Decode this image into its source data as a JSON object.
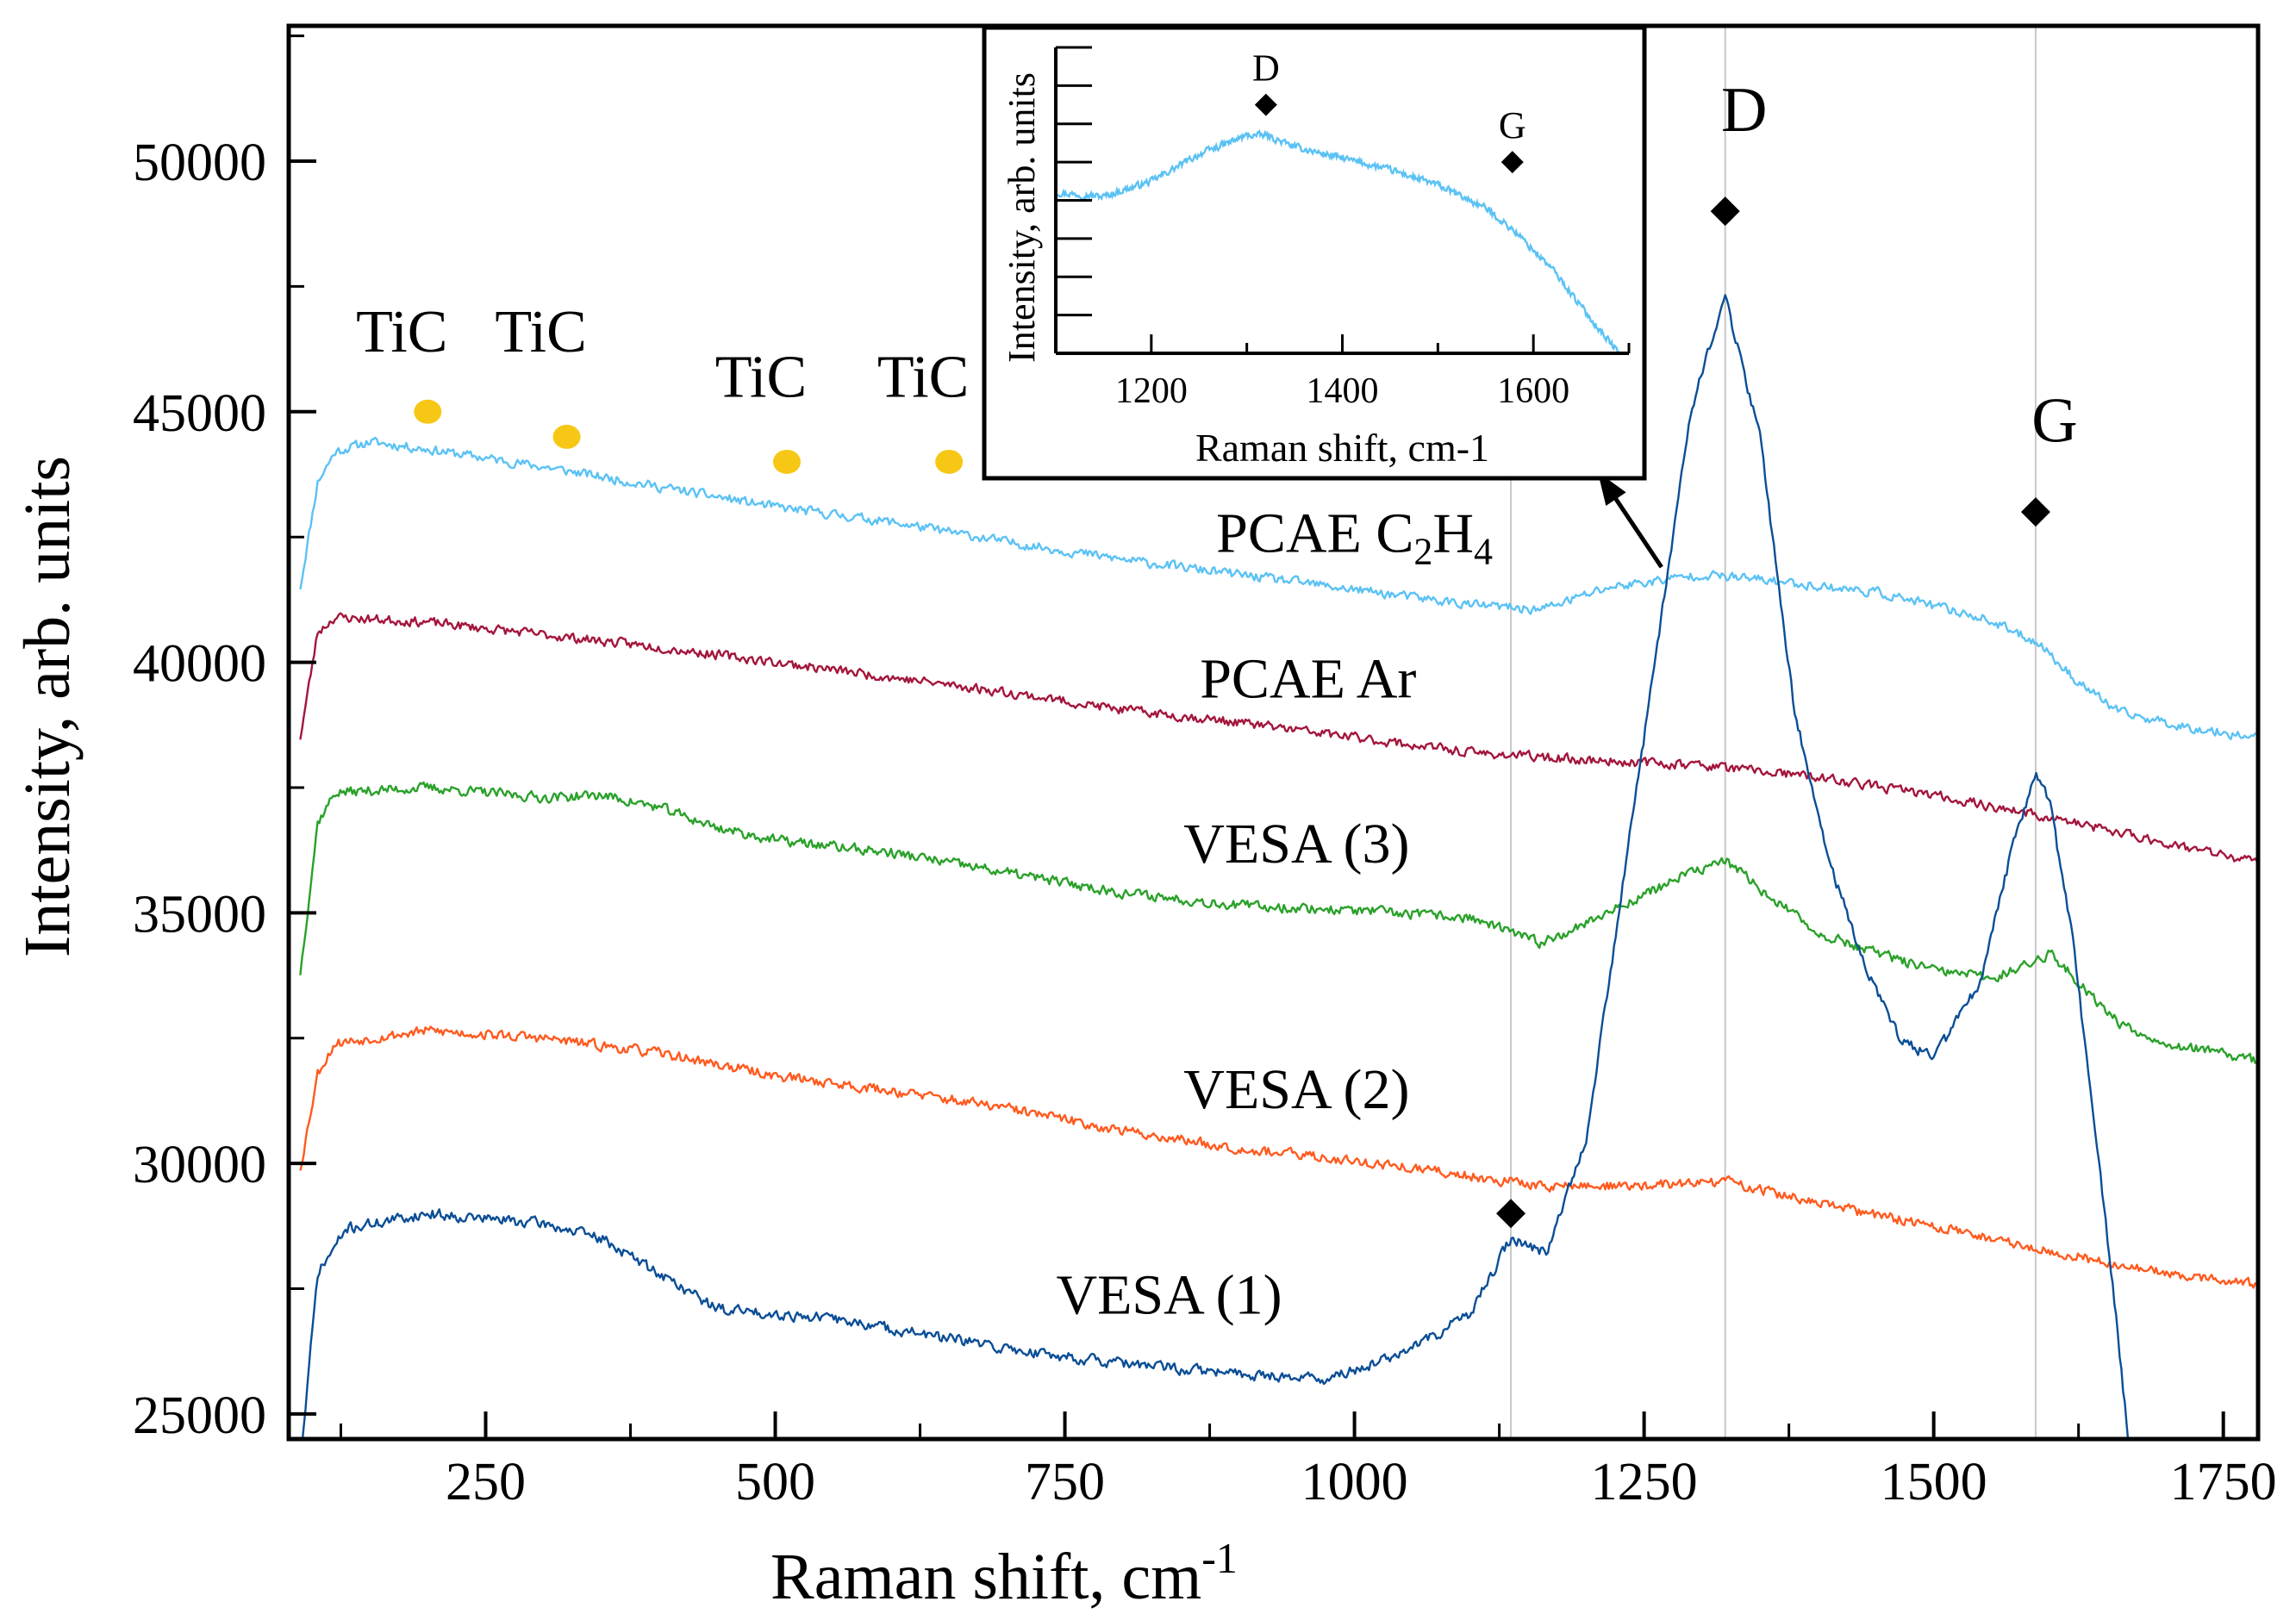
{
  "chart_data": {
    "type": "line",
    "xlabel": "Raman shift, cm",
    "xlabel_sup": "-1",
    "ylabel": "Intensity, arb. units",
    "xlim": [
      80,
      1780
    ],
    "ylim": [
      24500,
      52700
    ],
    "xticks": [
      250,
      500,
      750,
      1000,
      1250,
      1500,
      1750
    ],
    "xtick_labels": [
      "250",
      "500",
      "750",
      "1000",
      "1250",
      "1500",
      "1750"
    ],
    "yticks": [
      25000,
      30000,
      35000,
      40000,
      45000,
      50000
    ],
    "ytick_labels": [
      "25000",
      "30000",
      "35000",
      "40000",
      "45000",
      "50000"
    ],
    "grid": false,
    "vlines_x": [
      1135,
      1320,
      1588
    ],
    "series": [
      {
        "name": "PCAE C2H4",
        "color": "#5bc2f4",
        "seed": 11,
        "noise": 130,
        "points": [
          [
            90,
            41500
          ],
          [
            105,
            43600
          ],
          [
            120,
            44200
          ],
          [
            150,
            44400
          ],
          [
            200,
            44250
          ],
          [
            300,
            43900
          ],
          [
            400,
            43500
          ],
          [
            500,
            43100
          ],
          [
            600,
            42800
          ],
          [
            700,
            42400
          ],
          [
            800,
            42050
          ],
          [
            900,
            41750
          ],
          [
            1000,
            41450
          ],
          [
            1100,
            41150
          ],
          [
            1160,
            41050
          ],
          [
            1220,
            41500
          ],
          [
            1300,
            41750
          ],
          [
            1350,
            41650
          ],
          [
            1450,
            41400
          ],
          [
            1540,
            40900
          ],
          [
            1590,
            40400
          ],
          [
            1620,
            39700
          ],
          [
            1660,
            39000
          ],
          [
            1720,
            38700
          ],
          [
            1780,
            38500
          ]
        ]
      },
      {
        "name": "PCAE Ar",
        "color": "#a3163c",
        "seed": 23,
        "noise": 130,
        "points": [
          [
            90,
            38500
          ],
          [
            105,
            40600
          ],
          [
            120,
            40900
          ],
          [
            200,
            40800
          ],
          [
            300,
            40550
          ],
          [
            400,
            40300
          ],
          [
            500,
            40000
          ],
          [
            600,
            39700
          ],
          [
            700,
            39400
          ],
          [
            800,
            39050
          ],
          [
            900,
            38800
          ],
          [
            1000,
            38500
          ],
          [
            1100,
            38200
          ],
          [
            1200,
            38050
          ],
          [
            1300,
            37950
          ],
          [
            1400,
            37700
          ],
          [
            1500,
            37350
          ],
          [
            1600,
            36900
          ],
          [
            1700,
            36400
          ],
          [
            1780,
            36000
          ]
        ]
      },
      {
        "name": "VESA (3)",
        "color": "#2aa12a",
        "seed": 37,
        "noise": 140,
        "points": [
          [
            90,
            33800
          ],
          [
            105,
            36800
          ],
          [
            120,
            37400
          ],
          [
            200,
            37500
          ],
          [
            300,
            37300
          ],
          [
            350,
            37350
          ],
          [
            400,
            37100
          ],
          [
            450,
            36700
          ],
          [
            500,
            36450
          ],
          [
            600,
            36200
          ],
          [
            700,
            35800
          ],
          [
            800,
            35400
          ],
          [
            900,
            35150
          ],
          [
            1000,
            35050
          ],
          [
            1100,
            34900
          ],
          [
            1160,
            34400
          ],
          [
            1200,
            34800
          ],
          [
            1280,
            35700
          ],
          [
            1320,
            36050
          ],
          [
            1360,
            35300
          ],
          [
            1400,
            34600
          ],
          [
            1450,
            34200
          ],
          [
            1500,
            33850
          ],
          [
            1550,
            33700
          ],
          [
            1580,
            33950
          ],
          [
            1600,
            34200
          ],
          [
            1630,
            33500
          ],
          [
            1660,
            32800
          ],
          [
            1700,
            32400
          ],
          [
            1780,
            32050
          ]
        ]
      },
      {
        "name": "VESA (2)",
        "color": "#ff5a1f",
        "seed": 53,
        "noise": 140,
        "points": [
          [
            90,
            29900
          ],
          [
            105,
            31800
          ],
          [
            120,
            32400
          ],
          [
            200,
            32650
          ],
          [
            300,
            32500
          ],
          [
            400,
            32200
          ],
          [
            500,
            31750
          ],
          [
            600,
            31450
          ],
          [
            700,
            31100
          ],
          [
            800,
            30650
          ],
          [
            900,
            30300
          ],
          [
            1000,
            30050
          ],
          [
            1100,
            29750
          ],
          [
            1160,
            29550
          ],
          [
            1250,
            29550
          ],
          [
            1320,
            29650
          ],
          [
            1400,
            29200
          ],
          [
            1500,
            28750
          ],
          [
            1600,
            28250
          ],
          [
            1700,
            27800
          ],
          [
            1780,
            27600
          ]
        ]
      },
      {
        "name": "VESA (1)",
        "color": "#0b4e96",
        "seed": 71,
        "noise": 150,
        "points": [
          [
            90,
            24000
          ],
          [
            105,
            27800
          ],
          [
            130,
            28700
          ],
          [
            200,
            29000
          ],
          [
            300,
            28800
          ],
          [
            350,
            28500
          ],
          [
            400,
            27800
          ],
          [
            450,
            27100
          ],
          [
            500,
            27000
          ],
          [
            550,
            26900
          ],
          [
            600,
            26700
          ],
          [
            700,
            26300
          ],
          [
            800,
            26000
          ],
          [
            900,
            25800
          ],
          [
            980,
            25700
          ],
          [
            1050,
            26300
          ],
          [
            1100,
            27000
          ],
          [
            1135,
            28500
          ],
          [
            1165,
            28200
          ],
          [
            1200,
            30500
          ],
          [
            1250,
            38500
          ],
          [
            1290,
            45000
          ],
          [
            1320,
            47300
          ],
          [
            1350,
            44500
          ],
          [
            1380,
            39000
          ],
          [
            1410,
            36000
          ],
          [
            1440,
            34000
          ],
          [
            1470,
            32500
          ],
          [
            1500,
            32100
          ],
          [
            1540,
            33600
          ],
          [
            1570,
            36500
          ],
          [
            1588,
            37800
          ],
          [
            1600,
            37200
          ],
          [
            1620,
            34500
          ],
          [
            1640,
            30500
          ],
          [
            1655,
            27500
          ],
          [
            1670,
            24000
          ]
        ]
      }
    ],
    "series_labels": [
      {
        "text": "PCAE C",
        "sub1": "2",
        "mid": "H",
        "sub2": "4",
        "x": 1000,
        "y": 42200
      },
      {
        "text": "PCAE Ar",
        "x": 960,
        "y": 39300
      },
      {
        "text": "VESA (3)",
        "x": 950,
        "y": 36000
      },
      {
        "text": "VESA (2)",
        "x": 950,
        "y": 31100
      },
      {
        "text": "VESA (1)",
        "x": 840,
        "y": 27000
      }
    ],
    "peak_markers": [
      {
        "label": "D",
        "x": 1320,
        "y": 49000,
        "label_y": 50600
      },
      {
        "label": "G",
        "x": 1588,
        "y": 43000,
        "label_y": 44400
      },
      {
        "label": "",
        "x": 1135,
        "y": 29000,
        "label_y": 0
      }
    ],
    "tic_markers": [
      {
        "label": "TiC",
        "x": 200,
        "y": 45000,
        "label_y": 46200
      },
      {
        "label": "TiC",
        "x": 320,
        "y": 44500,
        "label_y": 46200
      },
      {
        "label": "TiC",
        "x": 510,
        "y": 44000,
        "label_y": 45300
      },
      {
        "label": "TiC",
        "x": 650,
        "y": 44000,
        "label_y": 45300
      }
    ],
    "inset": {
      "xlabel": "Raman shift, cm-1",
      "ylabel": "Intensity, arb. units",
      "xlim": [
        1100,
        1700
      ],
      "ylim": [
        0,
        8
      ],
      "xticks": [
        1200,
        1400,
        1600
      ],
      "xtick_labels": [
        "1200",
        "1400",
        "1600"
      ],
      "yticks": [
        1,
        2,
        3,
        4,
        5,
        6,
        7,
        8
      ],
      "markers": [
        {
          "label": "D",
          "x": 1320,
          "y": 6.5
        },
        {
          "label": "G",
          "x": 1578,
          "y": 5.0
        }
      ],
      "series": {
        "color": "#5bc2f4",
        "seed": 97,
        "noise": 0.12,
        "points": [
          [
            1100,
            4.2
          ],
          [
            1150,
            4.1
          ],
          [
            1200,
            4.5
          ],
          [
            1250,
            5.2
          ],
          [
            1300,
            5.7
          ],
          [
            1320,
            5.7
          ],
          [
            1350,
            5.4
          ],
          [
            1400,
            5.1
          ],
          [
            1450,
            4.8
          ],
          [
            1500,
            4.4
          ],
          [
            1550,
            3.8
          ],
          [
            1580,
            3.2
          ],
          [
            1620,
            2.2
          ],
          [
            1660,
            0.9
          ],
          [
            1690,
            0.0
          ]
        ]
      }
    },
    "arrow": {
      "from_x": 1265,
      "from_y": 41900,
      "to_x": 1210,
      "to_y": 43800
    }
  }
}
